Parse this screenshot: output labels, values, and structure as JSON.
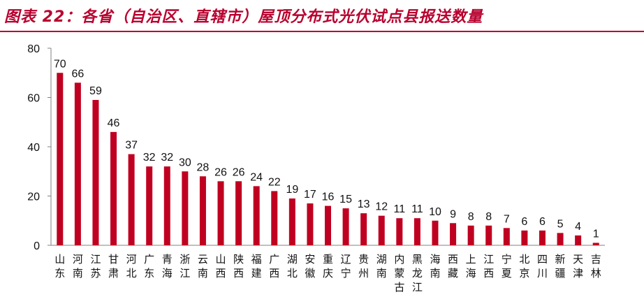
{
  "header": {
    "title": "图表 22：各省（自治区、直辖市）屋顶分布式光伏试点县报送数量"
  },
  "colors": {
    "bar": "#c00020",
    "title": "#b8002e",
    "axis": "#808080"
  },
  "chart_data": {
    "type": "bar",
    "title": "",
    "xlabel": "",
    "ylabel": "",
    "ylim": [
      0,
      80
    ],
    "yticks": [
      0,
      20,
      40,
      60,
      80
    ],
    "grid": false,
    "legend": "none",
    "categories": [
      "山东",
      "河南",
      "江苏",
      "甘肃",
      "河北",
      "广东",
      "青海",
      "浙江",
      "云南",
      "山西",
      "陕西",
      "福建",
      "广西",
      "湖北",
      "安徽",
      "重庆",
      "辽宁",
      "贵州",
      "湖南",
      "内蒙古",
      "黑龙江",
      "海南",
      "西藏",
      "上海",
      "江西",
      "宁夏",
      "北京",
      "四川",
      "新疆",
      "天津",
      "吉林"
    ],
    "values": [
      70,
      66,
      59,
      46,
      37,
      32,
      32,
      30,
      28,
      26,
      26,
      24,
      22,
      19,
      17,
      16,
      15,
      13,
      12,
      11,
      11,
      10,
      9,
      8,
      8,
      7,
      6,
      6,
      5,
      4,
      1
    ]
  }
}
